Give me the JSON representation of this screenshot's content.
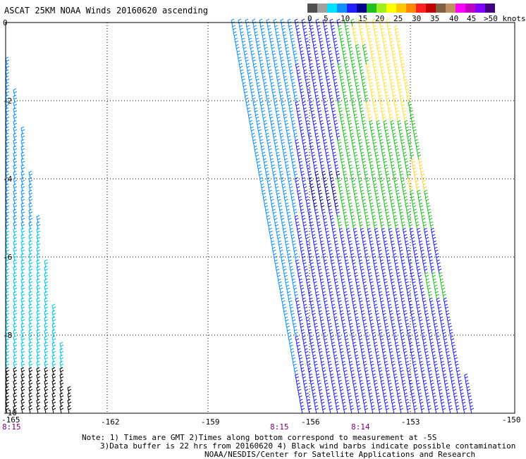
{
  "title": "ASCAT 25KM NOAA Winds 20160620 ascending",
  "legend": {
    "labels": [
      "0",
      "5",
      "10",
      "15",
      "20",
      "25",
      "30",
      "35",
      "40",
      "45",
      ">50 knots"
    ],
    "colors": [
      "#505050",
      "#a0a0a0",
      "#00e0ff",
      "#1090ff",
      "#2020ff",
      "#000090",
      "#20c020",
      "#a0f020",
      "#ffff00",
      "#ffc800",
      "#ff8800",
      "#ff2020",
      "#c00000",
      "#806040",
      "#c09060",
      "#ff00ff",
      "#c000c0",
      "#8000ff",
      "#400080"
    ]
  },
  "map": {
    "lon_labels": [
      "-165",
      "-162",
      "-159",
      "-156",
      "-153",
      "-150"
    ],
    "lat_labels": [
      "0",
      "-2",
      "-4",
      "-6",
      "-8",
      "-10"
    ],
    "time_labels": [
      "8:15",
      "8:15",
      "8:14"
    ]
  },
  "notes": {
    "line1": "Note: 1) Times are GMT 2)Times along bottom correspond to measurement at -5S",
    "line2": "3)Data buffer is 22 hrs from 20160620 4) Black wind barbs indicate possible contamination",
    "line3": "NOAA/NESDIS/Center for Satellite Applications and Research"
  }
}
